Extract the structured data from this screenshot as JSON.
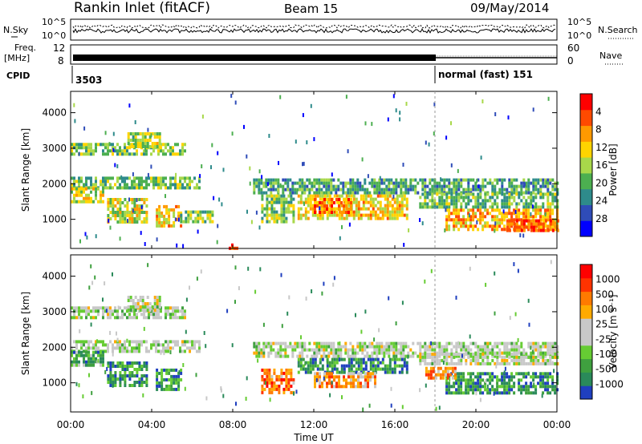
{
  "header": {
    "station": "Rankin Inlet (fitACF)",
    "beam": "Beam 15",
    "date": "09/May/2014"
  },
  "sky_panel": {
    "left_label": "N.Sky",
    "right_label": "N.Search",
    "left_ticks": [
      "10^5",
      "10^0"
    ],
    "right_ticks": [
      "10^5",
      "10^0"
    ]
  },
  "freq_panel": {
    "left_label_1": "Freq.",
    "left_label_2": "[MHz]",
    "left_ticks": [
      "12",
      "8"
    ],
    "right_label": "Nave",
    "right_ticks": [
      "60",
      "0"
    ]
  },
  "cpid_panel": {
    "label": "CPID",
    "entries": [
      {
        "text": "3503"
      },
      {
        "text": "normal (fast) 151"
      }
    ]
  },
  "x_axis": {
    "title": "Time UT",
    "ticks": [
      "00:00",
      "04:00",
      "08:00",
      "12:00",
      "16:00",
      "20:00",
      "00:00"
    ]
  },
  "chart_data": [
    {
      "type": "heatmap",
      "title": "",
      "xlabel": "",
      "ylabel": "Slant Range [km]",
      "x_range_hours": [
        0,
        24
      ],
      "ylim": [
        180,
        4600
      ],
      "y_ticks": [
        "1000",
        "2000",
        "3000",
        "4000"
      ],
      "colorbar": {
        "label": "Power [dB]",
        "ticks": [
          "4",
          "8",
          "12",
          "16",
          "20",
          "24",
          "28"
        ],
        "colors": [
          "#0000ff",
          "#2f4cb8",
          "#2e8b8b",
          "#4caf50",
          "#a8d84a",
          "#ffd400",
          "#ff9900",
          "#ff4a00",
          "#ff0000"
        ]
      },
      "echo_regions": [
        {
          "t0": 0.0,
          "t1": 5.6,
          "r0": 2850,
          "r1": 3150,
          "level": 0.45
        },
        {
          "t0": 2.8,
          "t1": 4.4,
          "r0": 3000,
          "r1": 3450,
          "level": 0.5
        },
        {
          "t0": 0.0,
          "t1": 6.4,
          "r0": 1900,
          "r1": 2200,
          "level": 0.42
        },
        {
          "t0": 0.0,
          "t1": 1.6,
          "r0": 1500,
          "r1": 1900,
          "level": 0.55
        },
        {
          "t0": 1.8,
          "t1": 3.8,
          "r0": 900,
          "r1": 1600,
          "level": 0.55
        },
        {
          "t0": 4.2,
          "t1": 5.4,
          "r0": 800,
          "r1": 1400,
          "level": 0.62
        },
        {
          "t0": 5.4,
          "t1": 7.0,
          "r0": 950,
          "r1": 1250,
          "level": 0.45
        },
        {
          "t0": 9.0,
          "t1": 24.0,
          "r0": 1750,
          "r1": 2150,
          "level": 0.35
        },
        {
          "t0": 9.4,
          "t1": 11.0,
          "r0": 900,
          "r1": 1700,
          "level": 0.45
        },
        {
          "t0": 11.2,
          "t1": 16.6,
          "r0": 1000,
          "r1": 1700,
          "level": 0.62
        },
        {
          "t0": 12.0,
          "t1": 13.8,
          "r0": 1200,
          "r1": 1600,
          "level": 0.78
        },
        {
          "t0": 17.2,
          "t1": 24.0,
          "r0": 1300,
          "r1": 1750,
          "level": 0.42
        },
        {
          "t0": 18.5,
          "t1": 24.0,
          "r0": 700,
          "r1": 1300,
          "level": 0.7
        },
        {
          "t0": 21.5,
          "t1": 24.0,
          "r0": 700,
          "r1": 1000,
          "level": 0.82
        },
        {
          "t0": 7.8,
          "t1": 8.2,
          "r0": 200,
          "r1": 320,
          "level": 0.85
        }
      ]
    },
    {
      "type": "heatmap",
      "title": "",
      "xlabel": "Time UT",
      "ylabel": "Slant Range [km]",
      "x_range_hours": [
        0,
        24
      ],
      "ylim": [
        180,
        4600
      ],
      "y_ticks": [
        "1000",
        "2000",
        "3000",
        "4000"
      ],
      "colorbar": {
        "label": "Velocity [m s⁻¹]",
        "ticks": [
          "1000",
          "500",
          "100",
          "25",
          "-25",
          "-100",
          "-500",
          "-1000"
        ],
        "colors": [
          "#1f3fbf",
          "#2a8a5a",
          "#3fa03f",
          "#66cc33",
          "#c8c8c8",
          "#c8c8c8",
          "#ffaa00",
          "#ff7a00",
          "#ff3300",
          "#ff0000"
        ]
      },
      "echo_regions": [
        {
          "t0": 0.0,
          "t1": 5.6,
          "r0": 2850,
          "r1": 3150,
          "level": 0.45
        },
        {
          "t0": 2.8,
          "t1": 4.4,
          "r0": 3000,
          "r1": 3450,
          "level": 0.45
        },
        {
          "t0": 0.0,
          "t1": 6.4,
          "r0": 1900,
          "r1": 2200,
          "level": 0.45
        },
        {
          "t0": 0.0,
          "t1": 1.6,
          "r0": 1500,
          "r1": 1900,
          "level": 0.25
        },
        {
          "t0": 1.8,
          "t1": 3.8,
          "r0": 900,
          "r1": 1600,
          "level": 0.2
        },
        {
          "t0": 4.2,
          "t1": 5.4,
          "r0": 800,
          "r1": 1400,
          "level": 0.22
        },
        {
          "t0": 9.0,
          "t1": 24.0,
          "r0": 1750,
          "r1": 2150,
          "level": 0.45
        },
        {
          "t0": 9.4,
          "t1": 11.0,
          "r0": 700,
          "r1": 1400,
          "level": 0.75
        },
        {
          "t0": 11.2,
          "t1": 16.6,
          "r0": 1300,
          "r1": 1700,
          "level": 0.2
        },
        {
          "t0": 12.0,
          "t1": 15.0,
          "r0": 900,
          "r1": 1300,
          "level": 0.68
        },
        {
          "t0": 17.2,
          "t1": 24.0,
          "r0": 1500,
          "r1": 1850,
          "level": 0.46
        },
        {
          "t0": 18.5,
          "t1": 24.0,
          "r0": 700,
          "r1": 1300,
          "level": 0.2
        },
        {
          "t0": 17.5,
          "t1": 19.0,
          "r0": 1150,
          "r1": 1450,
          "level": 0.72
        }
      ]
    }
  ]
}
